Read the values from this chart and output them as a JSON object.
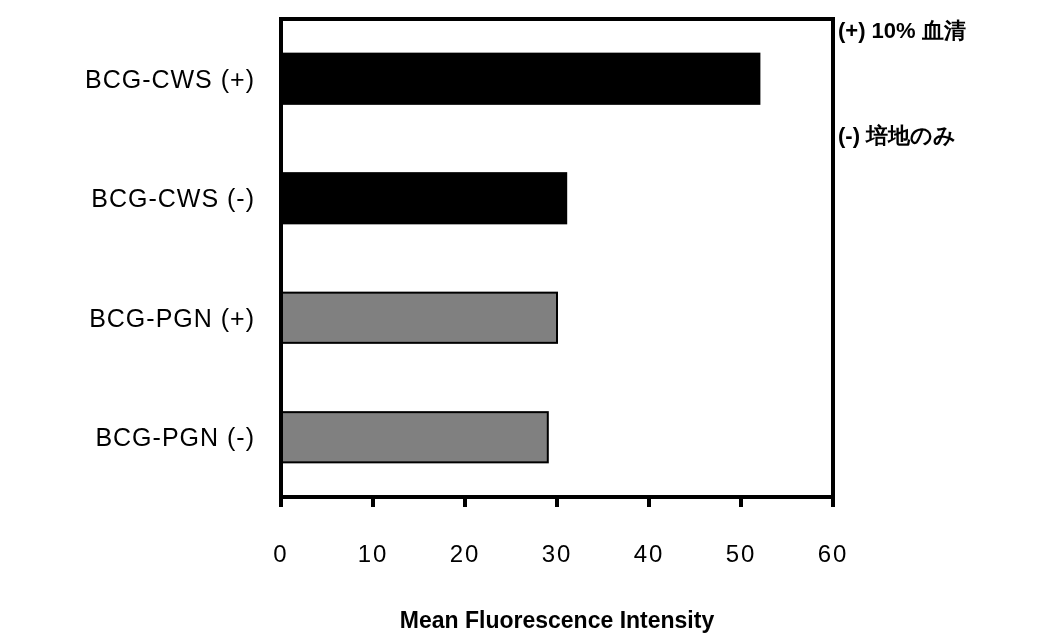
{
  "chart_data": {
    "type": "bar",
    "orientation": "horizontal",
    "categories": [
      "BCG-CWS (+)",
      "BCG-CWS (-)",
      "BCG-PGN (+)",
      "BCG-PGN (-)"
    ],
    "values": [
      52,
      31,
      30,
      29
    ],
    "colors": [
      "#000000",
      "#000000",
      "#808080",
      "#808080"
    ],
    "xlim": [
      0,
      60
    ],
    "xticks": [
      0,
      10,
      20,
      30,
      40,
      50,
      60
    ],
    "xlabel": "Mean Fluorescence Intensity",
    "annotations": [
      "(+) 10% 血清",
      "(-) 培地のみ"
    ]
  }
}
